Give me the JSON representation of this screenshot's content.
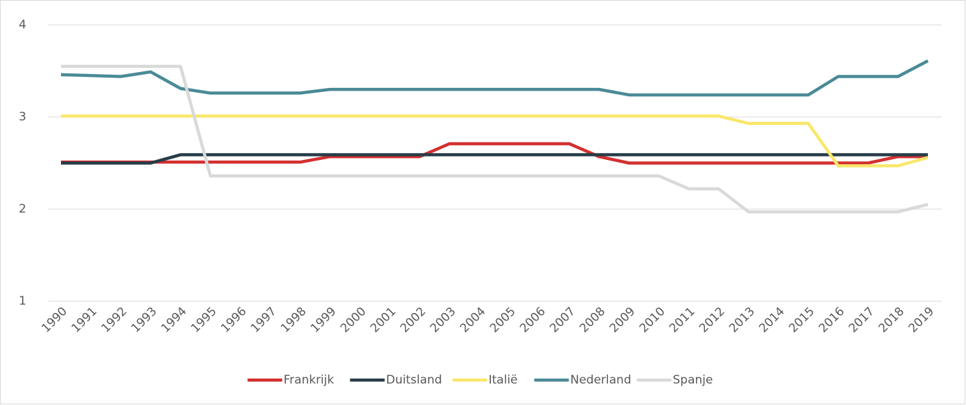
{
  "chart_data": {
    "type": "line",
    "categories": [
      "1990",
      "1991",
      "1992",
      "1993",
      "1994",
      "1995",
      "1996",
      "1997",
      "1998",
      "1999",
      "2000",
      "2001",
      "2002",
      "2003",
      "2004",
      "2005",
      "2006",
      "2007",
      "2008",
      "2009",
      "2010",
      "2011",
      "2012",
      "2013",
      "2014",
      "2015",
      "2016",
      "2017",
      "2018",
      "2019"
    ],
    "series": [
      {
        "name": "Frankrijk",
        "color": "#d32f2f",
        "values": [
          2.51,
          2.51,
          2.51,
          2.51,
          2.51,
          2.51,
          2.51,
          2.51,
          2.51,
          2.57,
          2.57,
          2.57,
          2.57,
          2.71,
          2.71,
          2.71,
          2.71,
          2.71,
          2.57,
          2.5,
          2.5,
          2.5,
          2.5,
          2.5,
          2.5,
          2.5,
          2.5,
          2.5,
          2.57,
          2.57
        ]
      },
      {
        "name": "Duitsland",
        "color": "#263d48",
        "values": [
          2.5,
          2.5,
          2.5,
          2.5,
          2.59,
          2.59,
          2.59,
          2.59,
          2.59,
          2.59,
          2.59,
          2.59,
          2.59,
          2.59,
          2.59,
          2.59,
          2.59,
          2.59,
          2.59,
          2.59,
          2.59,
          2.59,
          2.59,
          2.59,
          2.59,
          2.59,
          2.59,
          2.59,
          2.59,
          2.59
        ]
      },
      {
        "name": "Italië",
        "color": "#f9e76c",
        "values": [
          3.01,
          3.01,
          3.01,
          3.01,
          3.01,
          3.01,
          3.01,
          3.01,
          3.01,
          3.01,
          3.01,
          3.01,
          3.01,
          3.01,
          3.01,
          3.01,
          3.01,
          3.01,
          3.01,
          3.01,
          3.01,
          3.01,
          3.01,
          2.93,
          2.93,
          2.93,
          2.47,
          2.47,
          2.47,
          2.56
        ]
      },
      {
        "name": "Nederland",
        "color": "#4a8a96",
        "values": [
          3.46,
          3.45,
          3.44,
          3.49,
          3.31,
          3.26,
          3.26,
          3.26,
          3.26,
          3.3,
          3.3,
          3.3,
          3.3,
          3.3,
          3.3,
          3.3,
          3.3,
          3.3,
          3.3,
          3.24,
          3.24,
          3.24,
          3.24,
          3.24,
          3.24,
          3.24,
          3.44,
          3.44,
          3.44,
          3.61
        ]
      },
      {
        "name": "Spanje",
        "color": "#d9d9d9",
        "values": [
          3.55,
          3.55,
          3.55,
          3.55,
          3.55,
          2.36,
          2.36,
          2.36,
          2.36,
          2.36,
          2.36,
          2.36,
          2.36,
          2.36,
          2.36,
          2.36,
          2.36,
          2.36,
          2.36,
          2.36,
          2.36,
          2.22,
          2.22,
          1.97,
          1.97,
          1.97,
          1.97,
          1.97,
          1.97,
          2.05
        ]
      }
    ],
    "ylim": [
      1,
      4
    ],
    "yticks": [
      1,
      2,
      3,
      4
    ],
    "grid": true,
    "legend": "bottom"
  }
}
